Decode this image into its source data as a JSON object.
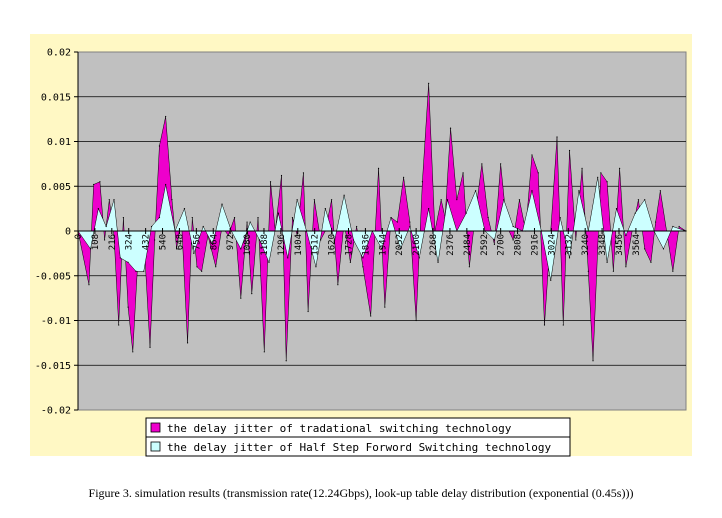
{
  "colors": {
    "background": "#fff8c4",
    "plot_area": "#c0c0c0",
    "series1": "#ee00cc",
    "series2": "#ccffff"
  },
  "chart_data": {
    "type": "area",
    "ylim": [
      -0.02,
      0.02
    ],
    "yticks": [
      "0.02",
      "0.015",
      "0.01",
      "0.005",
      "0",
      "-0.005",
      "-0.01",
      "-0.015",
      "-0.02"
    ],
    "ytick_values": [
      0.02,
      0.015,
      0.01,
      0.005,
      0,
      -0.005,
      -0.01,
      -0.015,
      -0.02
    ],
    "xlim": [
      0,
      3884
    ],
    "xticks": [
      "0",
      "108",
      "216",
      "324",
      "432",
      "540",
      "648",
      "756",
      "864",
      "972",
      "1080",
      "1188",
      "1296",
      "1404",
      "1512",
      "1620",
      "1728",
      "1836",
      "1944",
      "2052",
      "2160",
      "2268",
      "2376",
      "2484",
      "2592",
      "2700",
      "2808",
      "2916",
      "3024",
      "3132",
      "3240",
      "3348",
      "3456",
      "3564"
    ],
    "xtick_values": [
      0,
      108,
      216,
      324,
      432,
      540,
      648,
      756,
      864,
      972,
      1080,
      1188,
      1296,
      1404,
      1512,
      1620,
      1728,
      1836,
      1944,
      2052,
      2160,
      2268,
      2376,
      2484,
      2592,
      2700,
      2808,
      2916,
      3024,
      3132,
      3240,
      3348,
      3456,
      3564
    ],
    "series": [
      {
        "name": "the delay jitter of tradational switching technology",
        "x": [
          0,
          70,
          100,
          140,
          170,
          200,
          230,
          260,
          290,
          320,
          350,
          380,
          420,
          460,
          490,
          520,
          560,
          600,
          630,
          660,
          700,
          730,
          760,
          790,
          830,
          880,
          920,
          960,
          1000,
          1040,
          1080,
          1110,
          1150,
          1190,
          1230,
          1260,
          1300,
          1330,
          1370,
          1400,
          1440,
          1470,
          1510,
          1550,
          1580,
          1620,
          1660,
          1700,
          1740,
          1780,
          1820,
          1870,
          1920,
          1960,
          2000,
          2040,
          2080,
          2120,
          2160,
          2200,
          2240,
          2280,
          2320,
          2345,
          2380,
          2420,
          2460,
          2500,
          2540,
          2580,
          2620,
          2660,
          2700,
          2740,
          2780,
          2820,
          2860,
          2900,
          2940,
          2980,
          3020,
          3060,
          3100,
          3140,
          3180,
          3220,
          3260,
          3290,
          3340,
          3380,
          3420,
          3460,
          3500,
          3540,
          3580,
          3620,
          3660,
          3690,
          3720,
          3760,
          3800,
          3840,
          3884
        ],
        "values": [
          0.0,
          -0.006,
          0.0052,
          0.0055,
          -0.001,
          0.0035,
          -0.0005,
          -0.0105,
          0.0015,
          -0.0085,
          -0.0135,
          -0.004,
          -0.0005,
          -0.013,
          -0.001,
          0.0095,
          0.0128,
          0.0035,
          -0.002,
          0.0015,
          -0.0125,
          0.0015,
          -0.004,
          -0.0045,
          -0.0005,
          -0.004,
          0.0005,
          -0.0005,
          0.0015,
          -0.0075,
          0.001,
          -0.007,
          0.0015,
          -0.0135,
          0.0055,
          0.0,
          0.0062,
          -0.0145,
          0.0015,
          -0.0005,
          0.0065,
          -0.009,
          0.0035,
          -0.001,
          0.0,
          0.0035,
          -0.006,
          0.001,
          -0.0035,
          0.0005,
          -0.004,
          -0.0095,
          0.007,
          -0.0085,
          0.0015,
          0.001,
          0.006,
          0.001,
          -0.01,
          0.0055,
          0.0165,
          0.0,
          0.0035,
          0.0015,
          0.0115,
          0.0035,
          0.0065,
          -0.004,
          0.002,
          0.0075,
          0.0015,
          -0.0015,
          0.0075,
          0.0005,
          -0.001,
          0.0035,
          0.0,
          0.0085,
          0.0065,
          -0.0105,
          0.0,
          0.0105,
          -0.0105,
          0.009,
          -0.001,
          0.007,
          -0.0045,
          -0.0145,
          0.0065,
          0.0055,
          -0.0045,
          0.007,
          -0.004,
          0.0,
          0.0035,
          -0.002,
          -0.0035,
          0.001,
          0.0045,
          0.0,
          -0.0045,
          0.0005,
          0.0
        ]
      },
      {
        "name": "the delay jitter of Half Step Forword Switching technology",
        "x": [
          0,
          80,
          130,
          180,
          230,
          270,
          320,
          370,
          420,
          470,
          520,
          560,
          620,
          680,
          740,
          800,
          860,
          920,
          980,
          1040,
          1100,
          1160,
          1220,
          1280,
          1340,
          1400,
          1460,
          1520,
          1580,
          1640,
          1700,
          1760,
          1820,
          1880,
          1940,
          2000,
          2060,
          2120,
          2180,
          2240,
          2300,
          2360,
          2420,
          2480,
          2540,
          2600,
          2660,
          2720,
          2780,
          2840,
          2900,
          2960,
          3020,
          3080,
          3140,
          3200,
          3260,
          3320,
          3380,
          3440,
          3500,
          3560,
          3620,
          3680,
          3740,
          3800,
          3884
        ],
        "values": [
          0.0,
          -0.002,
          0.0025,
          0.0005,
          0.0035,
          -0.003,
          -0.0035,
          -0.0045,
          -0.0045,
          0.0005,
          0.0015,
          0.0052,
          0.0,
          0.0025,
          -0.0025,
          0.0005,
          -0.0015,
          0.003,
          0.0,
          -0.002,
          0.001,
          -0.001,
          -0.0035,
          0.002,
          -0.003,
          0.0035,
          0.0,
          -0.004,
          0.0025,
          -0.001,
          0.004,
          -0.001,
          -0.003,
          0.0,
          -0.002,
          0.0015,
          -0.002,
          0.0005,
          -0.003,
          0.0025,
          -0.0035,
          0.0035,
          0.0,
          0.002,
          0.0045,
          0.0,
          -0.001,
          0.0035,
          0.0005,
          0.0,
          0.0045,
          0.0,
          -0.0055,
          0.0015,
          -0.003,
          0.0045,
          0.0,
          0.006,
          -0.0035,
          0.0025,
          -0.0005,
          0.002,
          0.0035,
          0.0,
          -0.002,
          0.0005,
          0.0
        ]
      }
    ],
    "legend_position": "bottom-center"
  },
  "caption": "Figure 3.    simulation results (transmission rate(12.24Gbps), look-up table delay distribution (exponential (0.45s)))"
}
